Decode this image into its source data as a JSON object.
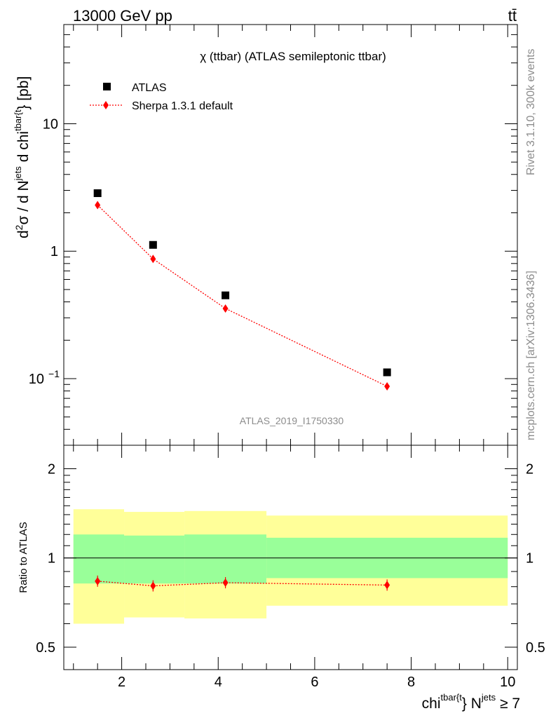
{
  "header": {
    "energy_label": "13000 GeV pp",
    "process_label": "tt̄"
  },
  "side_labels": {
    "rivet": "Rivet 3.1.10,  300k events",
    "source": "mcplots.cern.ch [arXiv:1306.3436]"
  },
  "chart_data": [
    {
      "type": "scatter",
      "panel": "main",
      "title": "χ (ttbar) (ATLAS semileptonic ttbar)",
      "analysis_id": "ATLAS_2019_I1750330",
      "ylabel_parts": {
        "d2": "d",
        "two": "2",
        "sigma": "σ / d N",
        "jets": "jets",
        "dchi": " d chi",
        "tbar": "tbar{t",
        "close": "} [pb]"
      },
      "yscale": "log",
      "ylim": [
        0.03,
        60
      ],
      "xlim": [
        0.8,
        10.2
      ],
      "y_ticks": [
        {
          "value": 10,
          "label": "10"
        },
        {
          "value": 1,
          "label": "1"
        },
        {
          "value": 0.1,
          "label": "10",
          "exp": "−1"
        }
      ],
      "legend_position": "top-left",
      "series": [
        {
          "name": "ATLAS",
          "marker": "square",
          "color": "#000000",
          "x": [
            1.5,
            2.65,
            4.15,
            7.5
          ],
          "y": [
            2.85,
            1.12,
            0.45,
            0.112
          ]
        },
        {
          "name": "Sherpa 1.3.1 default",
          "marker": "diamond",
          "line": "dotted",
          "color": "#ff0000",
          "x": [
            1.5,
            2.65,
            4.15,
            7.5
          ],
          "y": [
            2.3,
            0.87,
            0.355,
            0.087
          ]
        }
      ]
    },
    {
      "type": "scatter",
      "panel": "ratio",
      "ylabel": "Ratio to ATLAS",
      "xlabel_parts": {
        "chi": "chi",
        "tbar": "tbar{t",
        "mid": "} N",
        "jets": "jets",
        "end": " ≥ 7"
      },
      "yscale": "log",
      "ylim": [
        0.42,
        2.4
      ],
      "xlim": [
        0.8,
        10.2
      ],
      "x_ticks": [
        2,
        4,
        6,
        8,
        10
      ],
      "y_ticks": [
        {
          "value": 2,
          "label": "2"
        },
        {
          "value": 1,
          "label": "1"
        },
        {
          "value": 0.5,
          "label": "0.5"
        }
      ],
      "bands": [
        {
          "x0": 1.0,
          "x1": 2.05,
          "green": [
            0.82,
            1.2
          ],
          "yellow": [
            0.6,
            1.46
          ]
        },
        {
          "x0": 2.05,
          "x1": 3.3,
          "green": [
            0.82,
            1.19
          ],
          "yellow": [
            0.63,
            1.43
          ]
        },
        {
          "x0": 3.3,
          "x1": 5.0,
          "green": [
            0.82,
            1.2
          ],
          "yellow": [
            0.625,
            1.44
          ]
        },
        {
          "x0": 5.0,
          "x1": 10.0,
          "green": [
            0.855,
            1.17
          ],
          "yellow": [
            0.69,
            1.39
          ]
        }
      ],
      "band_colors": {
        "green": "#99ff99",
        "yellow": "#ffff99"
      },
      "series": [
        {
          "name": "Sherpa 1.3.1 default",
          "color": "#ff0000",
          "x": [
            1.5,
            2.65,
            4.15,
            7.5
          ],
          "y": [
            0.835,
            0.805,
            0.825,
            0.81
          ]
        }
      ]
    }
  ]
}
